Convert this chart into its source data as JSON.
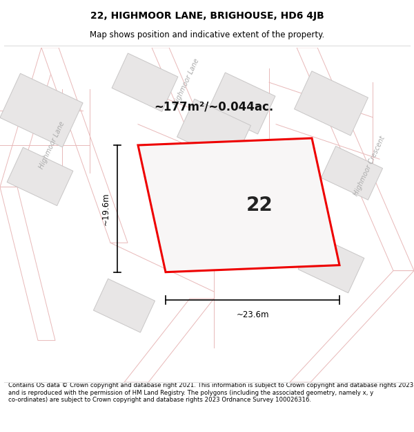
{
  "title": "22, HIGHMOOR LANE, BRIGHOUSE, HD6 4JB",
  "subtitle": "Map shows position and indicative extent of the property.",
  "footer": "Contains OS data © Crown copyright and database right 2021. This information is subject to Crown copyright and database rights 2023 and is reproduced with the permission of HM Land Registry. The polygons (including the associated geometry, namely x, y co-ordinates) are subject to Crown copyright and database rights 2023 Ordnance Survey 100026316.",
  "area_label": "~177m²/~0.044ac.",
  "number_label": "22",
  "dim_vertical": "~19.6m",
  "dim_horizontal": "~23.6m",
  "map_bg": "#f7f5f5",
  "road_line_color": "#e8b8b8",
  "building_fill": "#e8e6e6",
  "building_edge": "#c8c6c6",
  "cadastral_line": "#d0c8c8",
  "plot_outline_color": "#ee0000",
  "street_label_color": "#aaaaaa",
  "title_fontsize": 10,
  "subtitle_fontsize": 8.5,
  "footer_fontsize": 6.2
}
